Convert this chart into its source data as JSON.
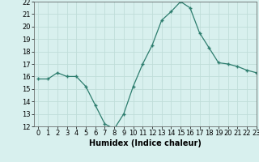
{
  "x": [
    0,
    1,
    2,
    3,
    4,
    5,
    6,
    7,
    8,
    9,
    10,
    11,
    12,
    13,
    14,
    15,
    16,
    17,
    18,
    19,
    20,
    21,
    22,
    23
  ],
  "y": [
    15.8,
    15.8,
    16.3,
    16.0,
    16.0,
    15.2,
    13.7,
    12.2,
    11.8,
    13.0,
    15.2,
    17.0,
    18.5,
    20.5,
    21.2,
    22.0,
    21.5,
    19.5,
    18.3,
    17.1,
    17.0,
    16.8,
    16.5,
    16.3
  ],
  "xlabel": "Humidex (Indice chaleur)",
  "ylim": [
    12,
    22
  ],
  "xlim": [
    -0.5,
    23
  ],
  "yticks": [
    12,
    13,
    14,
    15,
    16,
    17,
    18,
    19,
    20,
    21,
    22
  ],
  "xticks": [
    0,
    1,
    2,
    3,
    4,
    5,
    6,
    7,
    8,
    9,
    10,
    11,
    12,
    13,
    14,
    15,
    16,
    17,
    18,
    19,
    20,
    21,
    22,
    23
  ],
  "line_color": "#2d7d6e",
  "marker_color": "#2d7d6e",
  "bg_color": "#d8f0ee",
  "grid_color": "#c0ddd9",
  "xlabel_fontsize": 7,
  "tick_fontsize": 6,
  "fig_width": 3.2,
  "fig_height": 2.0,
  "dpi": 100
}
